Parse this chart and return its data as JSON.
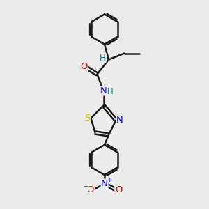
{
  "bg_color": "#ebebeb",
  "bond_color": "#1a1a1a",
  "bond_width": 1.8,
  "atom_colors": {
    "O": "#ff0000",
    "N": "#0000ff",
    "S": "#cccc00",
    "H": "#008080",
    "C": "#1a1a1a"
  },
  "font_size": 9.5,
  "fig_size": [
    3.0,
    3.0
  ],
  "dpi": 100,
  "xlim": [
    0,
    10
  ],
  "ylim": [
    0,
    10
  ]
}
